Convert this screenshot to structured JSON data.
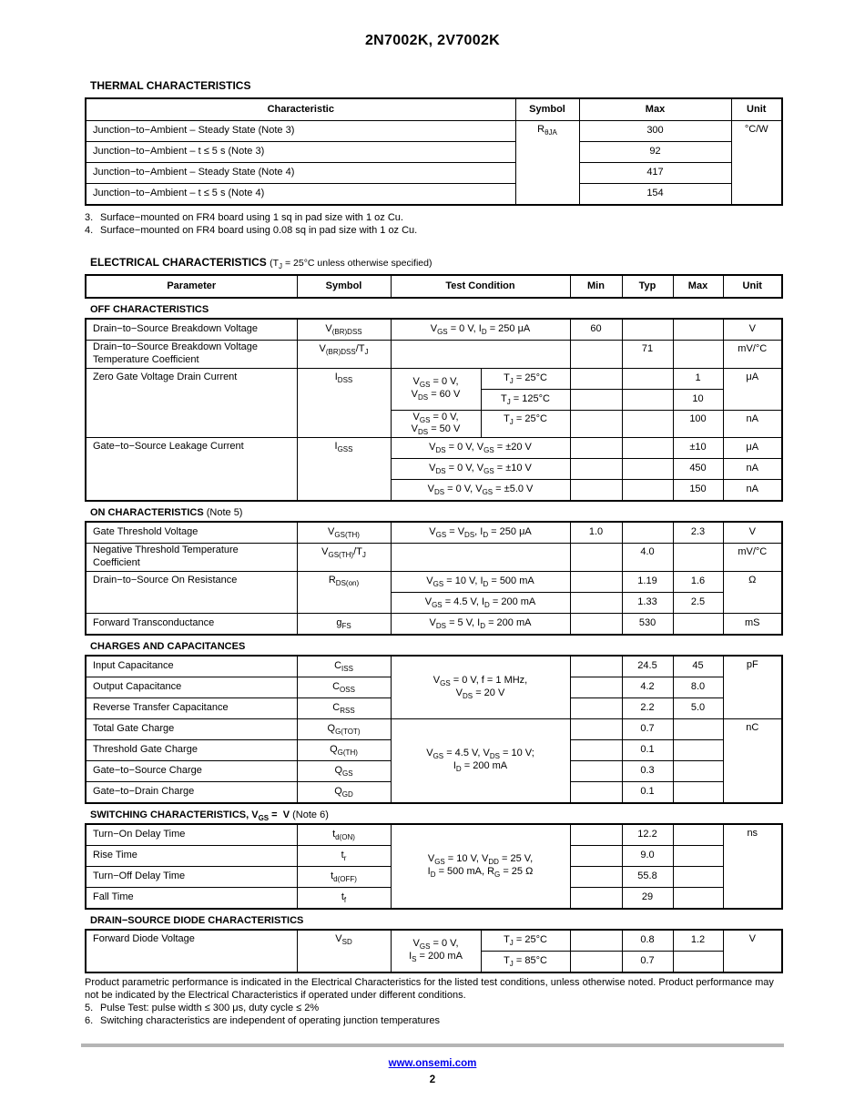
{
  "page": {
    "title": "2N7002K, 2V7002K"
  },
  "colors": {
    "link_blue": "#0000EE",
    "footer_bar_gray": "#b5b5b5",
    "text": "#000000",
    "background": "#ffffff"
  },
  "thermal": {
    "heading": "THERMAL CHARACTERISTICS",
    "header": [
      "Characteristic",
      "Symbol",
      "Max",
      "Unit"
    ],
    "rows": [
      [
        {
          "t": "Junction−to−Ambient – Steady State (Note 3)",
          "al": "l"
        },
        {
          "t": "R~θJA~",
          "rs": 4,
          "va": "t"
        },
        {
          "t": "300"
        },
        {
          "t": "°C/W",
          "rs": 4,
          "va": "t"
        }
      ],
      [
        {
          "t": "Junction−to−Ambient – t ≤ 5 s (Note 3)",
          "al": "l"
        },
        {
          "t": "92"
        }
      ],
      [
        {
          "t": "Junction−to−Ambient – Steady State (Note 4)",
          "al": "l"
        },
        {
          "t": "417"
        }
      ],
      [
        {
          "t": "Junction−to−Ambient – t ≤ 5 s (Note 4)",
          "al": "l"
        },
        {
          "t": "154"
        }
      ]
    ],
    "notes": [
      {
        "num": "3.",
        "text": "Surface−mounted on FR4 board using 1 sq in pad size with 1 oz Cu."
      },
      {
        "num": "4.",
        "text": "Surface−mounted on FR4 board using 0.08 sq in pad size with 1 oz Cu."
      }
    ]
  },
  "electrical": {
    "heading": "ELECTRICAL CHARACTERISTICS",
    "condition": "(T~J~ = 25°C unless otherwise specified)",
    "header": [
      "Parameter",
      "Symbol",
      "Test Condition",
      "Min",
      "Typ",
      "Max",
      "Unit"
    ],
    "sections": [
      {
        "title": "OFF CHARACTERISTICS",
        "note": "",
        "rows": [
          [
            {
              "t": "Drain−to−Source Breakdown Voltage",
              "al": "l"
            },
            {
              "t": "V~(BR)DSS~"
            },
            {
              "t": "V~GS~ = 0 V, I~D~ = 250 μA",
              "cs": 2
            },
            {
              "t": "60"
            },
            {
              "t": ""
            },
            {
              "t": ""
            },
            {
              "t": "V"
            }
          ],
          [
            {
              "t": "Drain−to−Source Breakdown Voltage\nTemperature Coefficient",
              "al": "l"
            },
            {
              "t": "V~(BR)DSS~/T~J~",
              "va": "t"
            },
            {
              "t": "",
              "cs": 2
            },
            {
              "t": ""
            },
            {
              "t": "71",
              "va": "t"
            },
            {
              "t": ""
            },
            {
              "t": "mV/°C",
              "va": "t"
            }
          ],
          [
            {
              "t": "Zero Gate Voltage Drain Current",
              "al": "l",
              "rs": 3,
              "va": "t"
            },
            {
              "t": "I~DSS~",
              "rs": 3,
              "va": "t"
            },
            {
              "t": "V~GS~ = 0 V,\nV~DS~ = 60 V",
              "rs": 2
            },
            {
              "t": "T~J~ = 25°C"
            },
            {
              "t": ""
            },
            {
              "t": ""
            },
            {
              "t": "1"
            },
            {
              "t": "μA",
              "rs": 2,
              "va": "t"
            }
          ],
          [
            {
              "t": "T~J~ = 125°C"
            },
            {
              "t": ""
            },
            {
              "t": ""
            },
            {
              "t": "10"
            }
          ],
          [
            {
              "t": "V~GS~ = 0 V,\nV~DS~ = 50 V"
            },
            {
              "t": "T~J~ = 25°C",
              "va": "t"
            },
            {
              "t": ""
            },
            {
              "t": ""
            },
            {
              "t": "100",
              "va": "t"
            },
            {
              "t": "nA",
              "va": "t"
            }
          ],
          [
            {
              "t": "Gate−to−Source Leakage Current",
              "al": "l",
              "rs": 3,
              "va": "t"
            },
            {
              "t": "I~GSS~",
              "rs": 3,
              "va": "t"
            },
            {
              "t": "V~DS~ = 0 V, V~GS~ = ±20 V",
              "cs": 2
            },
            {
              "t": ""
            },
            {
              "t": ""
            },
            {
              "t": "±10"
            },
            {
              "t": "μA"
            }
          ],
          [
            {
              "t": "V~DS~ = 0 V, V~GS~ = ±10 V",
              "cs": 2
            },
            {
              "t": ""
            },
            {
              "t": ""
            },
            {
              "t": "450"
            },
            {
              "t": "nA"
            }
          ],
          [
            {
              "t": "V~DS~ = 0 V, V~GS~ = ±5.0 V",
              "cs": 2
            },
            {
              "t": ""
            },
            {
              "t": ""
            },
            {
              "t": "150"
            },
            {
              "t": "nA"
            }
          ]
        ]
      },
      {
        "title": "ON CHARACTERISTICS",
        "note": "(Note 5)",
        "rows": [
          [
            {
              "t": "Gate Threshold Voltage",
              "al": "l"
            },
            {
              "t": "V~GS(TH)~"
            },
            {
              "t": "V~GS~ = V~DS~, I~D~ = 250 μA",
              "cs": 2
            },
            {
              "t": "1.0"
            },
            {
              "t": ""
            },
            {
              "t": "2.3"
            },
            {
              "t": "V"
            }
          ],
          [
            {
              "t": "Negative Threshold Temperature\nCoefficient",
              "al": "l"
            },
            {
              "t": "V~GS(TH)~/T~J~",
              "va": "t"
            },
            {
              "t": "",
              "cs": 2
            },
            {
              "t": ""
            },
            {
              "t": "4.0",
              "va": "t"
            },
            {
              "t": ""
            },
            {
              "t": "mV/°C",
              "va": "t"
            }
          ],
          [
            {
              "t": "Drain−to−Source On Resistance",
              "al": "l",
              "rs": 2,
              "va": "t"
            },
            {
              "t": "R~DS(on)~",
              "rs": 2,
              "va": "t"
            },
            {
              "t": "V~GS~ = 10 V, I~D~ = 500 mA",
              "cs": 2
            },
            {
              "t": ""
            },
            {
              "t": "1.19"
            },
            {
              "t": "1.6"
            },
            {
              "t": "Ω",
              "rs": 2,
              "va": "t"
            }
          ],
          [
            {
              "t": "V~GS~ = 4.5 V, I~D~ = 200 mA",
              "cs": 2
            },
            {
              "t": ""
            },
            {
              "t": "1.33"
            },
            {
              "t": "2.5"
            }
          ],
          [
            {
              "t": "Forward Transconductance",
              "al": "l"
            },
            {
              "t": "g~FS~"
            },
            {
              "t": "V~DS~ = 5 V, I~D~ = 200 mA",
              "cs": 2
            },
            {
              "t": ""
            },
            {
              "t": "530"
            },
            {
              "t": ""
            },
            {
              "t": "mS"
            }
          ]
        ]
      },
      {
        "title": "CHARGES AND CAPACITANCES",
        "note": "",
        "rows": [
          [
            {
              "t": "Input Capacitance",
              "al": "l"
            },
            {
              "t": "C~ISS~"
            },
            {
              "t": "V~GS~ = 0 V, f = 1 MHz,\nV~DS~ = 20 V",
              "cs": 2,
              "rs": 3
            },
            {
              "t": ""
            },
            {
              "t": "24.5"
            },
            {
              "t": "45"
            },
            {
              "t": "pF",
              "rs": 3,
              "va": "t"
            }
          ],
          [
            {
              "t": "Output Capacitance",
              "al": "l"
            },
            {
              "t": "C~OSS~"
            },
            {
              "t": ""
            },
            {
              "t": "4.2"
            },
            {
              "t": "8.0"
            }
          ],
          [
            {
              "t": "Reverse Transfer Capacitance",
              "al": "l"
            },
            {
              "t": "C~RSS~"
            },
            {
              "t": ""
            },
            {
              "t": "2.2"
            },
            {
              "t": "5.0"
            }
          ],
          [
            {
              "t": "Total Gate Charge",
              "al": "l"
            },
            {
              "t": "Q~G(TOT)~"
            },
            {
              "t": "V~GS~ = 4.5 V, V~DS~ = 10 V;\nI~D~ = 200 mA",
              "cs": 2,
              "rs": 4
            },
            {
              "t": ""
            },
            {
              "t": "0.7"
            },
            {
              "t": ""
            },
            {
              "t": "nC",
              "rs": 4,
              "va": "t"
            }
          ],
          [
            {
              "t": "Threshold Gate Charge",
              "al": "l"
            },
            {
              "t": "Q~G(TH)~"
            },
            {
              "t": ""
            },
            {
              "t": "0.1"
            },
            {
              "t": ""
            }
          ],
          [
            {
              "t": "Gate−to−Source Charge",
              "al": "l"
            },
            {
              "t": "Q~GS~"
            },
            {
              "t": ""
            },
            {
              "t": "0.3"
            },
            {
              "t": ""
            }
          ],
          [
            {
              "t": "Gate−to−Drain Charge",
              "al": "l"
            },
            {
              "t": "Q~GD~"
            },
            {
              "t": ""
            },
            {
              "t": "0.1"
            },
            {
              "t": ""
            }
          ]
        ]
      },
      {
        "title": "SWITCHING CHARACTERISTICS, V~GS~ =  V",
        "note": "(Note 6)",
        "rows": [
          [
            {
              "t": "Turn−On Delay Time",
              "al": "l"
            },
            {
              "t": "t~d(ON)~"
            },
            {
              "t": "V~GS~ = 10 V, V~DD~ = 25 V,\nI~D~ = 500 mA, R~G~ = 25 Ω",
              "cs": 2,
              "rs": 4
            },
            {
              "t": ""
            },
            {
              "t": "12.2"
            },
            {
              "t": ""
            },
            {
              "t": "ns",
              "rs": 4,
              "va": "t"
            }
          ],
          [
            {
              "t": "Rise Time",
              "al": "l"
            },
            {
              "t": "t~r~"
            },
            {
              "t": ""
            },
            {
              "t": "9.0"
            },
            {
              "t": ""
            }
          ],
          [
            {
              "t": "Turn−Off Delay Time",
              "al": "l"
            },
            {
              "t": "t~d(OFF)~"
            },
            {
              "t": ""
            },
            {
              "t": "55.8"
            },
            {
              "t": ""
            }
          ],
          [
            {
              "t": "Fall Time",
              "al": "l"
            },
            {
              "t": "t~f~"
            },
            {
              "t": ""
            },
            {
              "t": "29"
            },
            {
              "t": ""
            }
          ]
        ]
      },
      {
        "title": "DRAIN−SOURCE DIODE CHARACTERISTICS",
        "note": "",
        "rows": [
          [
            {
              "t": "Forward Diode Voltage",
              "al": "l",
              "rs": 2,
              "va": "t"
            },
            {
              "t": "V~SD~",
              "rs": 2,
              "va": "t"
            },
            {
              "t": "V~GS~ = 0 V,\nI~S~ = 200 mA",
              "rs": 2
            },
            {
              "t": "T~J~ = 25°C"
            },
            {
              "t": ""
            },
            {
              "t": "0.8"
            },
            {
              "t": "1.2"
            },
            {
              "t": "V",
              "rs": 2,
              "va": "t"
            }
          ],
          [
            {
              "t": "T~J~ = 85°C"
            },
            {
              "t": ""
            },
            {
              "t": "0.7"
            },
            {
              "t": ""
            }
          ]
        ]
      }
    ]
  },
  "footnotes": {
    "disclaimer": "Product parametric performance is indicated in the Electrical Characteristics for the listed test conditions, unless otherwise noted. Product performance may not be indicated by the Electrical Characteristics if operated under different conditions.",
    "notes": [
      {
        "num": "5.",
        "text": "Pulse Test: pulse width ≤ 300 μs, duty cycle ≤ 2%"
      },
      {
        "num": "6.",
        "text": "Switching characteristics are independent of operating junction temperatures"
      }
    ]
  },
  "footer": {
    "link": "www.onsemi.com",
    "page_number": "2"
  }
}
